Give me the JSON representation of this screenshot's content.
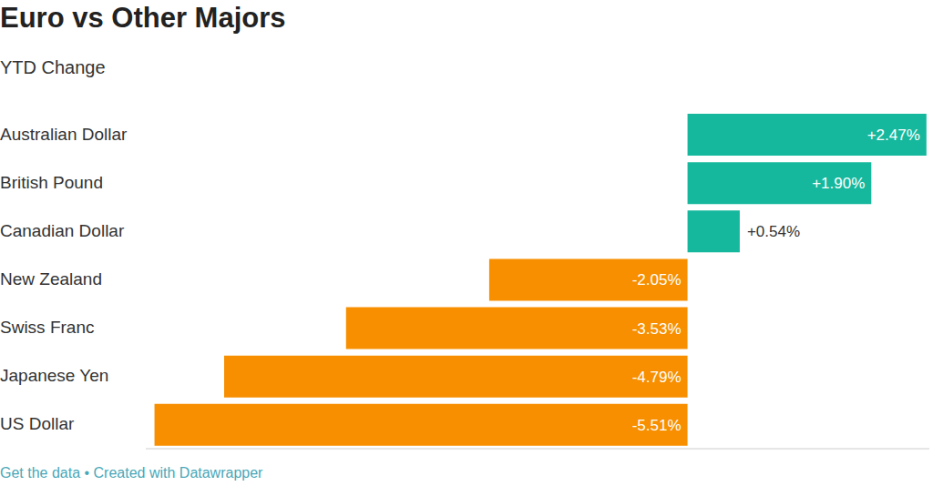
{
  "chart_data": {
    "type": "bar",
    "title": "Euro vs Other Majors",
    "subtitle": "YTD Change",
    "categories": [
      "Australian Dollar",
      "British Pound",
      "Canadian Dollar",
      "New Zealand",
      "Swiss Franc",
      "Japanese Yen",
      "US Dollar"
    ],
    "values": [
      2.47,
      1.9,
      0.54,
      -2.05,
      -3.53,
      -4.79,
      -5.51
    ],
    "value_labels": [
      "+2.47%",
      "+1.90%",
      "+0.54%",
      "-2.05%",
      "-3.53%",
      "-4.79%",
      "-5.51%"
    ],
    "colors": [
      "#16b89d",
      "#16b89d",
      "#16b89d",
      "#f78f00",
      "#f78f00",
      "#f78f00",
      "#f78f00"
    ],
    "xlim": [
      -5.6,
      2.5
    ],
    "xticks": [],
    "orientation": "horizontal",
    "data_labels": true,
    "tick_labels": "y",
    "grid": false,
    "footer": "Get the data • Created with Datawrapper"
  }
}
